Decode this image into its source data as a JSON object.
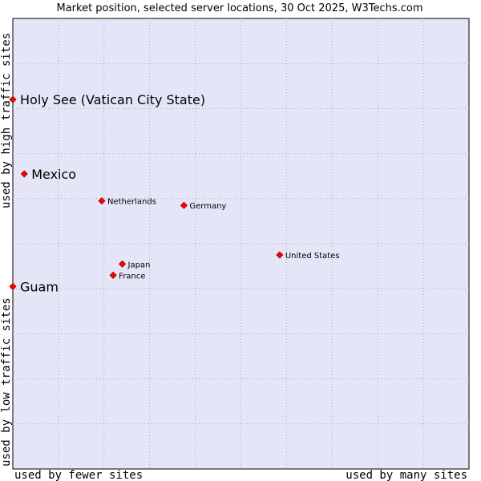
{
  "chart_data": {
    "type": "scatter",
    "title": "Market position, selected server locations, 30 Oct 2025, W3Techs.com",
    "xlabel_low": "used by fewer sites",
    "xlabel_high": "used by many sites",
    "ylabel_low": "used by low traffic sites",
    "ylabel_high": "used by high traffic sites",
    "xlim": [
      0,
      10
    ],
    "ylim": [
      0,
      10
    ],
    "grid": true,
    "colors": {
      "plot_background": "#e4e6f8",
      "grid": "#aaaaaa",
      "marker": "#ff0000",
      "marker_edge": "#990000"
    },
    "points": [
      {
        "name": "Holy See (Vatican City State)",
        "x": 0.0,
        "y": 8.2,
        "label_size": "large"
      },
      {
        "name": "Mexico",
        "x": 0.25,
        "y": 6.55,
        "label_size": "large"
      },
      {
        "name": "Netherlands",
        "x": 1.95,
        "y": 5.95,
        "label_size": "small"
      },
      {
        "name": "Germany",
        "x": 3.75,
        "y": 5.85,
        "label_size": "small"
      },
      {
        "name": "United States",
        "x": 5.85,
        "y": 4.75,
        "label_size": "small"
      },
      {
        "name": "Japan",
        "x": 2.4,
        "y": 4.55,
        "label_size": "small"
      },
      {
        "name": "France",
        "x": 2.2,
        "y": 4.3,
        "label_size": "small"
      },
      {
        "name": "Guam",
        "x": 0.0,
        "y": 4.05,
        "label_size": "large"
      }
    ]
  }
}
